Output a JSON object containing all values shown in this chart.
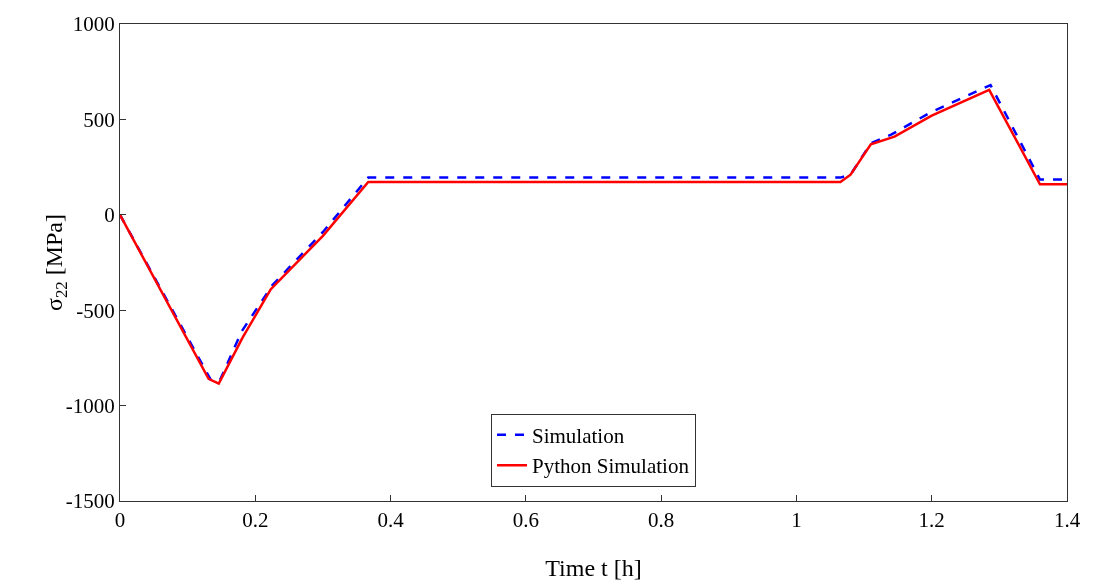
{
  "chart_data": {
    "type": "line",
    "xlabel": "Time t [h]",
    "ylabel": "σ$_{22}$ [MPa]",
    "xlim": [
      0,
      1.4
    ],
    "xticks": [
      0,
      0.2,
      0.4,
      0.6,
      0.8,
      1,
      1.2,
      1.4
    ],
    "ylim": [
      -1500,
      1000
    ],
    "yticks": [
      -1500,
      -1000,
      -500,
      0,
      500,
      1000
    ],
    "grid": false,
    "legend": "bottom",
    "marker": "none",
    "series": [
      {
        "name": "Simulation",
        "color": "#0000ff",
        "line_style": "dashed",
        "x": [
          0,
          0.135,
          0.148,
          0.18,
          0.225,
          0.3,
          0.367,
          1.065,
          1.08,
          1.11,
          1.14,
          1.2,
          1.287,
          1.36,
          1.4
        ],
        "values": [
          0,
          -870,
          -865,
          -610,
          -370,
          -90,
          195,
          195,
          210,
          375,
          420,
          540,
          680,
          185,
          185
        ]
      },
      {
        "name": "Python Simulation",
        "color": "#ff0000",
        "line_style": "solid",
        "x": [
          0,
          0.131,
          0.146,
          0.181,
          0.223,
          0.3,
          0.367,
          1.065,
          1.08,
          1.11,
          1.145,
          1.2,
          1.285,
          1.36,
          1.4
        ],
        "values": [
          0,
          -860,
          -885,
          -645,
          -390,
          -110,
          172,
          172,
          210,
          370,
          410,
          520,
          655,
          160,
          160
        ]
      }
    ]
  }
}
